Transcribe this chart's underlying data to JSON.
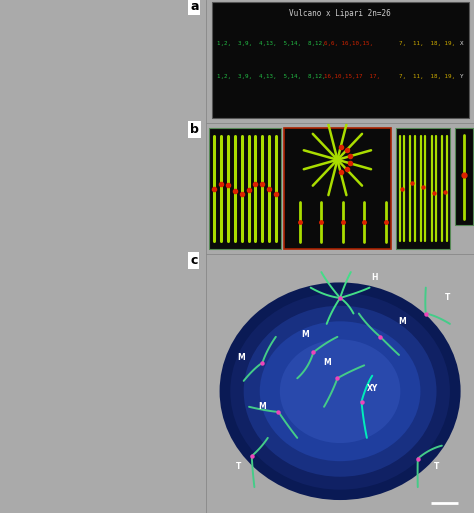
{
  "panel_a": {
    "bg_color": "#111111",
    "title": "Vulcano x Lipari 2n=26",
    "title_color": "#cccccc",
    "green_color": "#22bb44",
    "red_color": "#cc2200",
    "yellow_color": "#ccaa00",
    "white_color": "#dddddd",
    "label": "a",
    "row1_green": "1,2,  3,9,  4,13,  5,14,  8,12,",
    "row1_red": "6,6, 16,10,15,",
    "row1_yellow": "7,  11,  18, 19,",
    "row1_end": "X",
    "row2_green": "1,2,  3,9,  4,13,  5,14,  8,12,",
    "row2_red": "16,10,15,17  17,",
    "row2_yellow": "7,  11,  18, 19,",
    "row2_end": "Y"
  },
  "panel_b": {
    "bg_color": "#000000",
    "label": "b",
    "green_color": "#aadd00",
    "red_color": "#dd2200"
  },
  "panel_c": {
    "label": "c",
    "bg_color": "#000000"
  },
  "label_color": "#000000",
  "label_bg": "#ffffff",
  "fig_bg": "#aaaaaa",
  "left_panel_bg": "#ffffff",
  "separator_color": "#888888"
}
